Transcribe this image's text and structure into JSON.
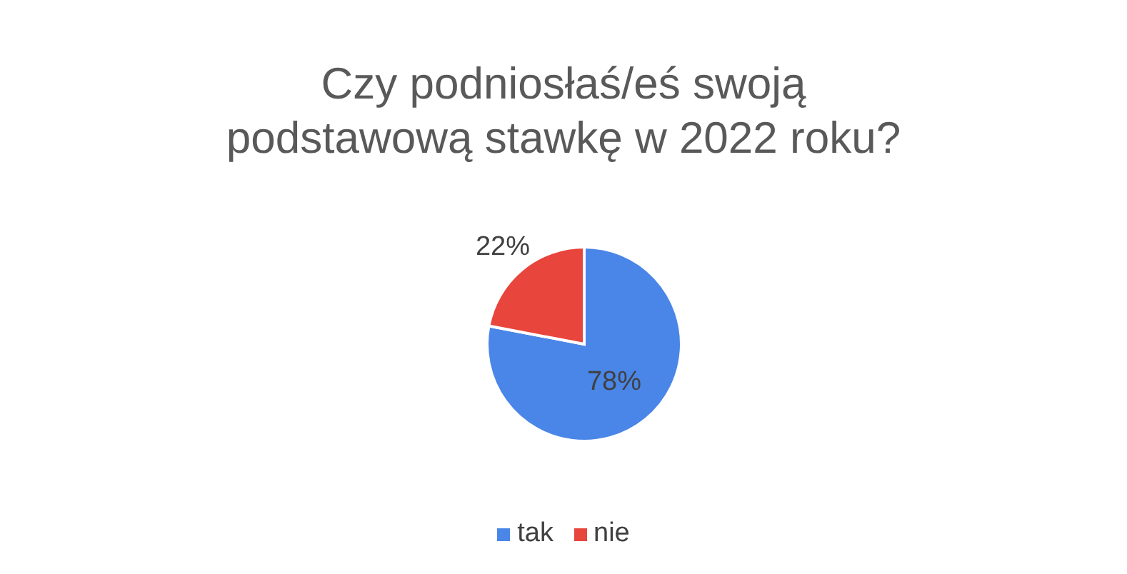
{
  "chart_data": {
    "type": "pie",
    "title": "Czy podniosłaś/eś swoją\npodstawową stawkę w 2022 roku?",
    "categories": [
      "tak",
      "nie"
    ],
    "values": [
      78,
      22
    ],
    "colors": [
      "#4a86e8",
      "#e8453c"
    ],
    "value_labels": [
      "78%",
      "22%"
    ],
    "legend": "bottom"
  }
}
